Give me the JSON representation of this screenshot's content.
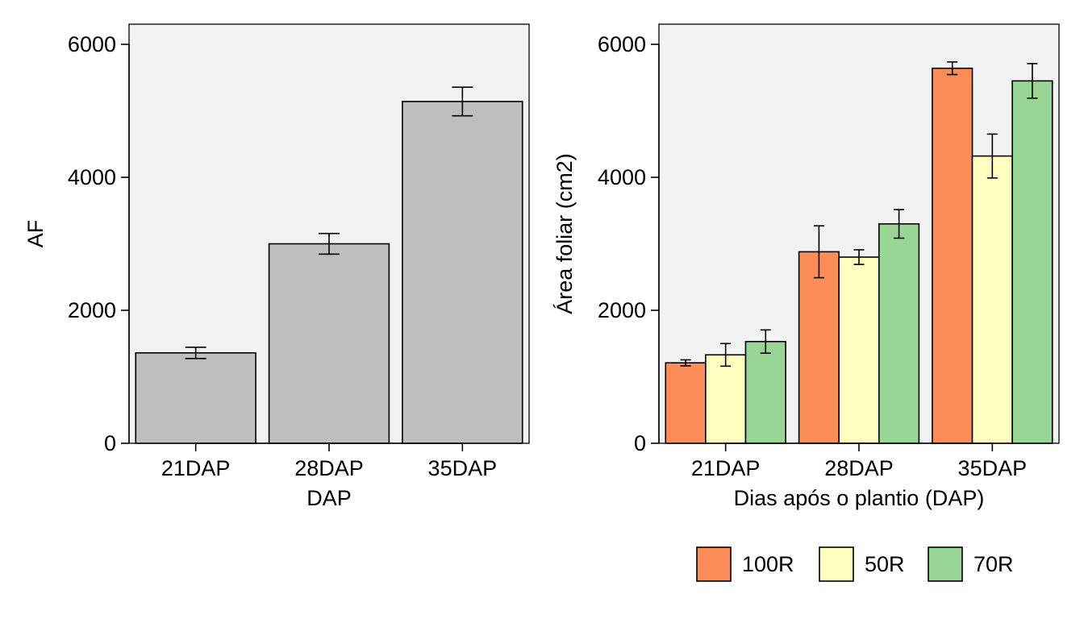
{
  "chart_data": [
    {
      "type": "bar",
      "xlabel": "DAP",
      "ylabel": "AF",
      "categories": [
        "21DAP",
        "28DAP",
        "35DAP"
      ],
      "values": [
        1360,
        3000,
        5140
      ],
      "errors": [
        85,
        155,
        215
      ],
      "ylim": [
        0,
        6000
      ],
      "yticks": [
        0,
        2000,
        4000,
        6000
      ],
      "bar_color": "#bfbfbf",
      "panel_color": "#f2f2f2",
      "grid": false
    },
    {
      "type": "bar",
      "xlabel": "Dias após o plantio (DAP)",
      "ylabel": "Área foliar (cm2)",
      "categories": [
        "21DAP",
        "28DAP",
        "35DAP"
      ],
      "series": [
        {
          "name": "100R",
          "color": "#fc8d59",
          "values": [
            1210,
            2880,
            5640
          ],
          "errors": [
            45,
            390,
            95
          ]
        },
        {
          "name": "50R",
          "color": "#ffffbf",
          "values": [
            1330,
            2800,
            4320
          ],
          "errors": [
            170,
            110,
            330
          ]
        },
        {
          "name": "70R",
          "color": "#99d594",
          "values": [
            1530,
            3300,
            5450
          ],
          "errors": [
            175,
            215,
            260
          ]
        }
      ],
      "ylim": [
        0,
        6000
      ],
      "yticks": [
        0,
        2000,
        4000,
        6000
      ],
      "legend_position": "bottom",
      "panel_color": "#f2f2f2",
      "grid": false
    }
  ]
}
